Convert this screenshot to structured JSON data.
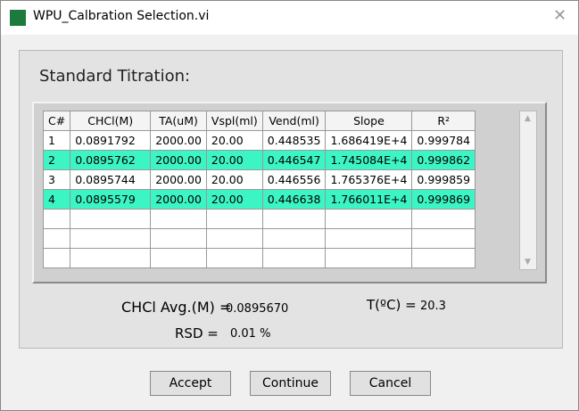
{
  "window": {
    "title": "WPU_Calbration Selection.vi"
  },
  "panel": {
    "title": "Standard Titration:"
  },
  "table": {
    "headers": [
      "C#",
      "CHCl(M)",
      "TA(uM)",
      "Vspl(ml)",
      "Vend(ml)",
      "Slope",
      "R²"
    ],
    "rows": [
      {
        "cells": [
          "1",
          "0.0891792",
          "2000.00",
          "20.00",
          "0.448535",
          "1.686419E+4",
          "0.999784"
        ],
        "highlighted": false
      },
      {
        "cells": [
          "2",
          "0.0895762",
          "2000.00",
          "20.00",
          "0.446547",
          "1.745084E+4",
          "0.999862"
        ],
        "highlighted": true
      },
      {
        "cells": [
          "3",
          "0.0895744",
          "2000.00",
          "20.00",
          "0.446556",
          "1.765376E+4",
          "0.999859"
        ],
        "highlighted": false
      },
      {
        "cells": [
          "4",
          "0.0895579",
          "2000.00",
          "20.00",
          "0.446638",
          "1.766011E+4",
          "0.999869"
        ],
        "highlighted": true
      }
    ],
    "highlight_color": "#3cf5c4"
  },
  "summary": {
    "avg_label": "CHCl Avg.(M) =",
    "avg_value": "0.0895670",
    "rsd_label": "RSD =",
    "rsd_value": "0.01 %",
    "temp_label": "T(ºC) =",
    "temp_value": "20.3"
  },
  "buttons": [
    "Accept",
    "Continue",
    "Cancel"
  ]
}
